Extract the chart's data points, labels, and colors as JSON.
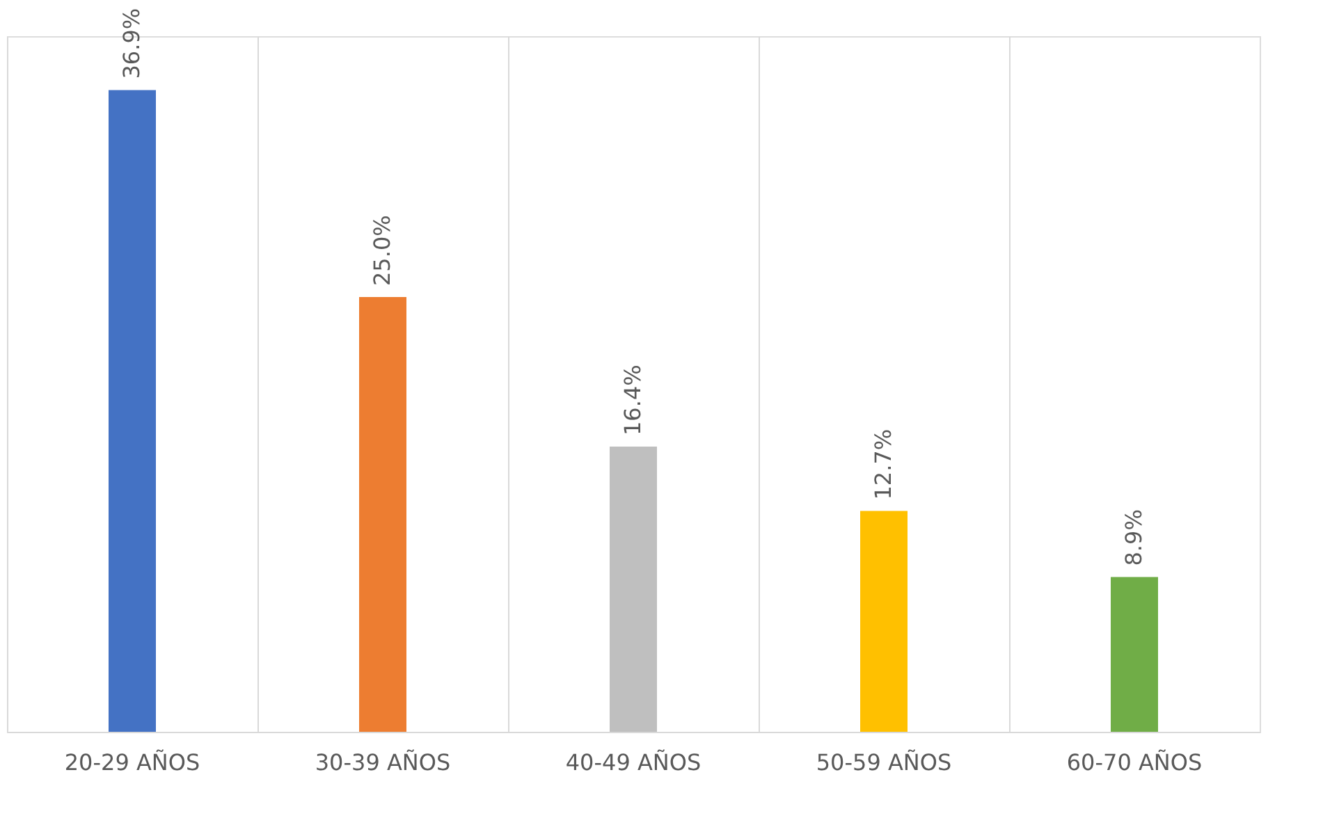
{
  "chart_data": {
    "type": "bar",
    "categories": [
      "20-29 AÑOS",
      "30-39 AÑOS",
      "40-49 AÑOS",
      "50-59 AÑOS",
      "60-70 AÑOS"
    ],
    "values": [
      36.9,
      25.0,
      16.4,
      12.7,
      8.9
    ],
    "value_labels": [
      "36.9%",
      "25.0%",
      "16.4%",
      "12.7%",
      "8.9%"
    ],
    "colors": [
      "#4472c4",
      "#ed7d31",
      "#bfbfbf",
      "#ffc000",
      "#70ad47"
    ],
    "grid": "x"
  }
}
